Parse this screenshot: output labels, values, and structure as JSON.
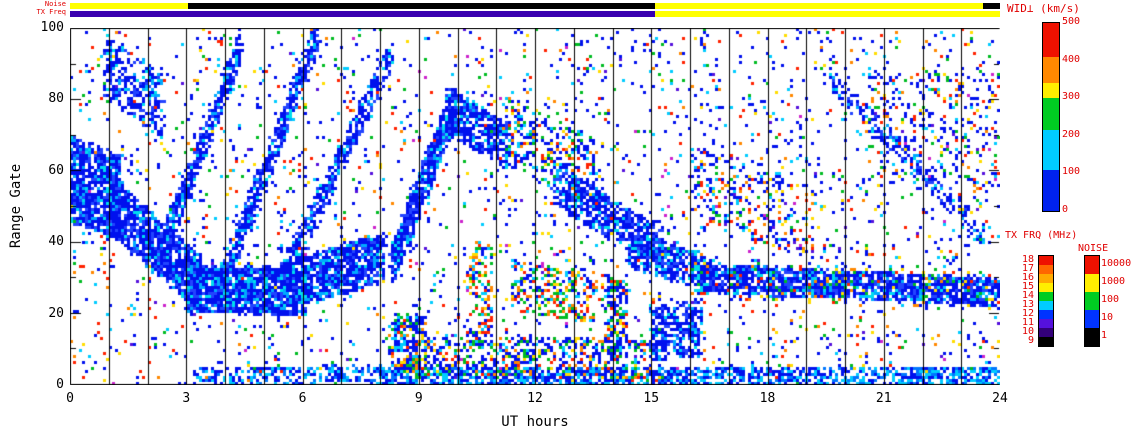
{
  "top_bars": {
    "noise_label": "Noise",
    "txfreq_label": "TX Freq",
    "noise_segments": [
      {
        "x0": 0,
        "x1": 3.05,
        "color": "#ffff00"
      },
      {
        "x0": 3.05,
        "x1": 15.1,
        "color": "#000000"
      },
      {
        "x0": 15.1,
        "x1": 23.55,
        "color": "#ffff00"
      },
      {
        "x0": 23.55,
        "x1": 24,
        "color": "#000000"
      }
    ],
    "txfreq_segments": [
      {
        "x0": 0,
        "x1": 15.1,
        "color": "#3a00b0"
      },
      {
        "x0": 15.1,
        "x1": 24,
        "color": "#ffff00"
      }
    ]
  },
  "axes": {
    "x": {
      "label": "UT hours",
      "min": 0,
      "max": 24,
      "major_ticks": [
        0,
        3,
        6,
        9,
        12,
        15,
        18,
        21,
        24
      ],
      "minor_every": 1
    },
    "y": {
      "label": "Range Gate",
      "min": 0,
      "max": 100,
      "major_ticks": [
        0,
        20,
        40,
        60,
        80,
        100
      ],
      "minor_every": 10
    }
  },
  "legends": {
    "label_color": "#e00000",
    "wid": {
      "title": "WID⊥ (km/s)",
      "min": 0,
      "max": 500,
      "ticks": [
        500,
        400,
        300,
        200,
        100,
        0
      ],
      "segments": [
        {
          "v0": 410,
          "v1": 500,
          "color": "#ee1100"
        },
        {
          "v0": 340,
          "v1": 410,
          "color": "#ff8800"
        },
        {
          "v0": 300,
          "v1": 340,
          "color": "#ffee00"
        },
        {
          "v0": 215,
          "v1": 300,
          "color": "#00cc22"
        },
        {
          "v0": 110,
          "v1": 215,
          "color": "#00ccff"
        },
        {
          "v0": 0,
          "v1": 110,
          "color": "#0022ee"
        }
      ]
    },
    "txfrq": {
      "title": "TX FRQ (MHz)",
      "ticks": [
        "18",
        "17",
        "16",
        "15",
        "14",
        "13",
        "12",
        "11",
        "10",
        "9"
      ],
      "colors": [
        "#ee1100",
        "#ff6600",
        "#ffaa00",
        "#ffee00",
        "#00cc22",
        "#00ccff",
        "#0033ff",
        "#5511dd",
        "#33007a",
        "#000000"
      ]
    },
    "noise": {
      "title": "NOISE",
      "ticks": [
        "10000",
        "1000",
        "100",
        "10",
        "1"
      ],
      "colors": [
        "#ee1100",
        "#ffee00",
        "#00cc22",
        "#0033ff",
        "#000000"
      ]
    }
  },
  "chart_data": {
    "type": "scatter",
    "title": "",
    "xlabel": "UT hours",
    "ylabel": "Range Gate",
    "xlim": [
      0,
      24
    ],
    "ylim": [
      0,
      100
    ],
    "value_variable": "WID⊥ (km/s)",
    "hour_gridlines": true,
    "palettes": {
      "dense": [
        [
          "#0011ee",
          0.62
        ],
        [
          "#2244ff",
          0.18
        ],
        [
          "#00aaff",
          0.12
        ],
        [
          "#00ddee",
          0.08
        ]
      ],
      "densemix": [
        [
          "#0011ee",
          0.5
        ],
        [
          "#00ccff",
          0.14
        ],
        [
          "#00bb22",
          0.14
        ],
        [
          "#ff2200",
          0.08
        ],
        [
          "#ffdd00",
          0.07
        ],
        [
          "#ff8800",
          0.07
        ]
      ],
      "mixed": [
        [
          "#0011ee",
          0.25
        ],
        [
          "#00ccff",
          0.13
        ],
        [
          "#00bb22",
          0.22
        ],
        [
          "#ff2200",
          0.16
        ],
        [
          "#ffdd00",
          0.12
        ],
        [
          "#ff8800",
          0.12
        ]
      ],
      "noise": [
        [
          "#0011ee",
          0.48
        ],
        [
          "#00ccff",
          0.1
        ],
        [
          "#00bb22",
          0.11
        ],
        [
          "#ff2200",
          0.12
        ],
        [
          "#ffdd00",
          0.07
        ],
        [
          "#ff8800",
          0.06
        ],
        [
          "#cc22cc",
          0.02
        ],
        [
          "#5511dd",
          0.04
        ]
      ],
      "bottom": [
        [
          "#0011ee",
          0.45
        ],
        [
          "#0077ff",
          0.25
        ],
        [
          "#00ccff",
          0.3
        ]
      ]
    },
    "features": [
      {
        "x0": 0,
        "x1": 1.3,
        "g0": 58,
        "g1": 52,
        "spread": 24,
        "n": 800,
        "palette": "dense"
      },
      {
        "x0": 0.9,
        "x1": 3.4,
        "g0": 52,
        "g1": 28,
        "spread": 16,
        "n": 1100,
        "palette": "dense"
      },
      {
        "x0": 3.0,
        "x1": 6.1,
        "g0": 27,
        "g1": 26,
        "spread": 13,
        "n": 1500,
        "palette": "dense"
      },
      {
        "x0": 6.0,
        "x1": 8.1,
        "g0": 29,
        "g1": 36,
        "spread": 14,
        "n": 800,
        "palette": "dense"
      },
      {
        "x0": 2.3,
        "x1": 4.4,
        "g0": 35,
        "g1": 95,
        "spread": 9,
        "n": 450,
        "palette": "dense"
      },
      {
        "x0": 3.9,
        "x1": 6.4,
        "g0": 28,
        "g1": 98,
        "spread": 9,
        "n": 550,
        "palette": "dense"
      },
      {
        "x0": 5.4,
        "x1": 8.3,
        "g0": 28,
        "g1": 92,
        "spread": 9,
        "n": 500,
        "palette": "dense"
      },
      {
        "x0": 0.9,
        "x1": 2.4,
        "g0": 90,
        "g1": 78,
        "spread": 18,
        "n": 300,
        "palette": "dense"
      },
      {
        "x0": 8.3,
        "x1": 9.9,
        "g0": 33,
        "g1": 78,
        "spread": 11,
        "n": 650,
        "palette": "dense"
      },
      {
        "x0": 9.7,
        "x1": 11.3,
        "g0": 77,
        "g1": 67,
        "spread": 13,
        "n": 420,
        "palette": "dense"
      },
      {
        "x0": 11.2,
        "x1": 13.6,
        "g0": 72,
        "g1": 58,
        "spread": 20,
        "n": 320,
        "palette": "densemix"
      },
      {
        "x0": 12.5,
        "x1": 15.3,
        "g0": 56,
        "g1": 38,
        "spread": 12,
        "n": 600,
        "palette": "dense"
      },
      {
        "x0": 14.4,
        "x1": 16.6,
        "g0": 38,
        "g1": 31,
        "spread": 10,
        "n": 420,
        "palette": "dense"
      },
      {
        "x0": 16.2,
        "x1": 24,
        "g0": 30,
        "g1": 26,
        "spread": 8,
        "n": 1500,
        "palette": "dense"
      },
      {
        "x0": 8,
        "x1": 24,
        "g0": 2,
        "g1": 2,
        "spread": 6,
        "n": 1500,
        "palette": "bottom"
      },
      {
        "x0": 3.2,
        "x1": 8,
        "g0": 2,
        "g1": 3,
        "spread": 5,
        "n": 250,
        "palette": "bottom"
      },
      {
        "x0": 11.4,
        "x1": 13.6,
        "g0": 28,
        "g1": 24,
        "spread": 14,
        "n": 260,
        "palette": "mixed"
      },
      {
        "x0": 9,
        "x1": 15.2,
        "g0": 8,
        "g1": 7,
        "spread": 12,
        "n": 550,
        "palette": "densemix"
      },
      {
        "x0": 8.3,
        "x1": 9.2,
        "g0": 12,
        "g1": 10,
        "spread": 18,
        "n": 250,
        "palette": "densemix"
      },
      {
        "x0": 10.3,
        "x1": 10.9,
        "g0": 25,
        "g1": 25,
        "spread": 28,
        "n": 160,
        "palette": "mixed"
      },
      {
        "x0": 13.8,
        "x1": 14.4,
        "g0": 20,
        "g1": 18,
        "spread": 22,
        "n": 200,
        "palette": "densemix"
      },
      {
        "x0": 19.6,
        "x1": 23.6,
        "g0": 86,
        "g1": 42,
        "spread": 7,
        "n": 220,
        "palette": "dense"
      },
      {
        "x0": 16,
        "x1": 19.2,
        "g0": 58,
        "g1": 44,
        "spread": 20,
        "n": 260,
        "palette": "noise"
      },
      {
        "x0": 15.0,
        "x1": 16.3,
        "g0": 14,
        "g1": 16,
        "spread": 16,
        "n": 320,
        "palette": "dense"
      },
      {
        "x0": 20.5,
        "x1": 24,
        "g0": 72,
        "g1": 70,
        "spread": 32,
        "n": 280,
        "palette": "noise"
      },
      {
        "x0": 16,
        "x1": 24,
        "g0": 29,
        "g1": 27,
        "spread": 10,
        "n": 200,
        "palette": "mixed"
      }
    ],
    "background_noise": {
      "n": 2600,
      "palette": "noise"
    }
  }
}
